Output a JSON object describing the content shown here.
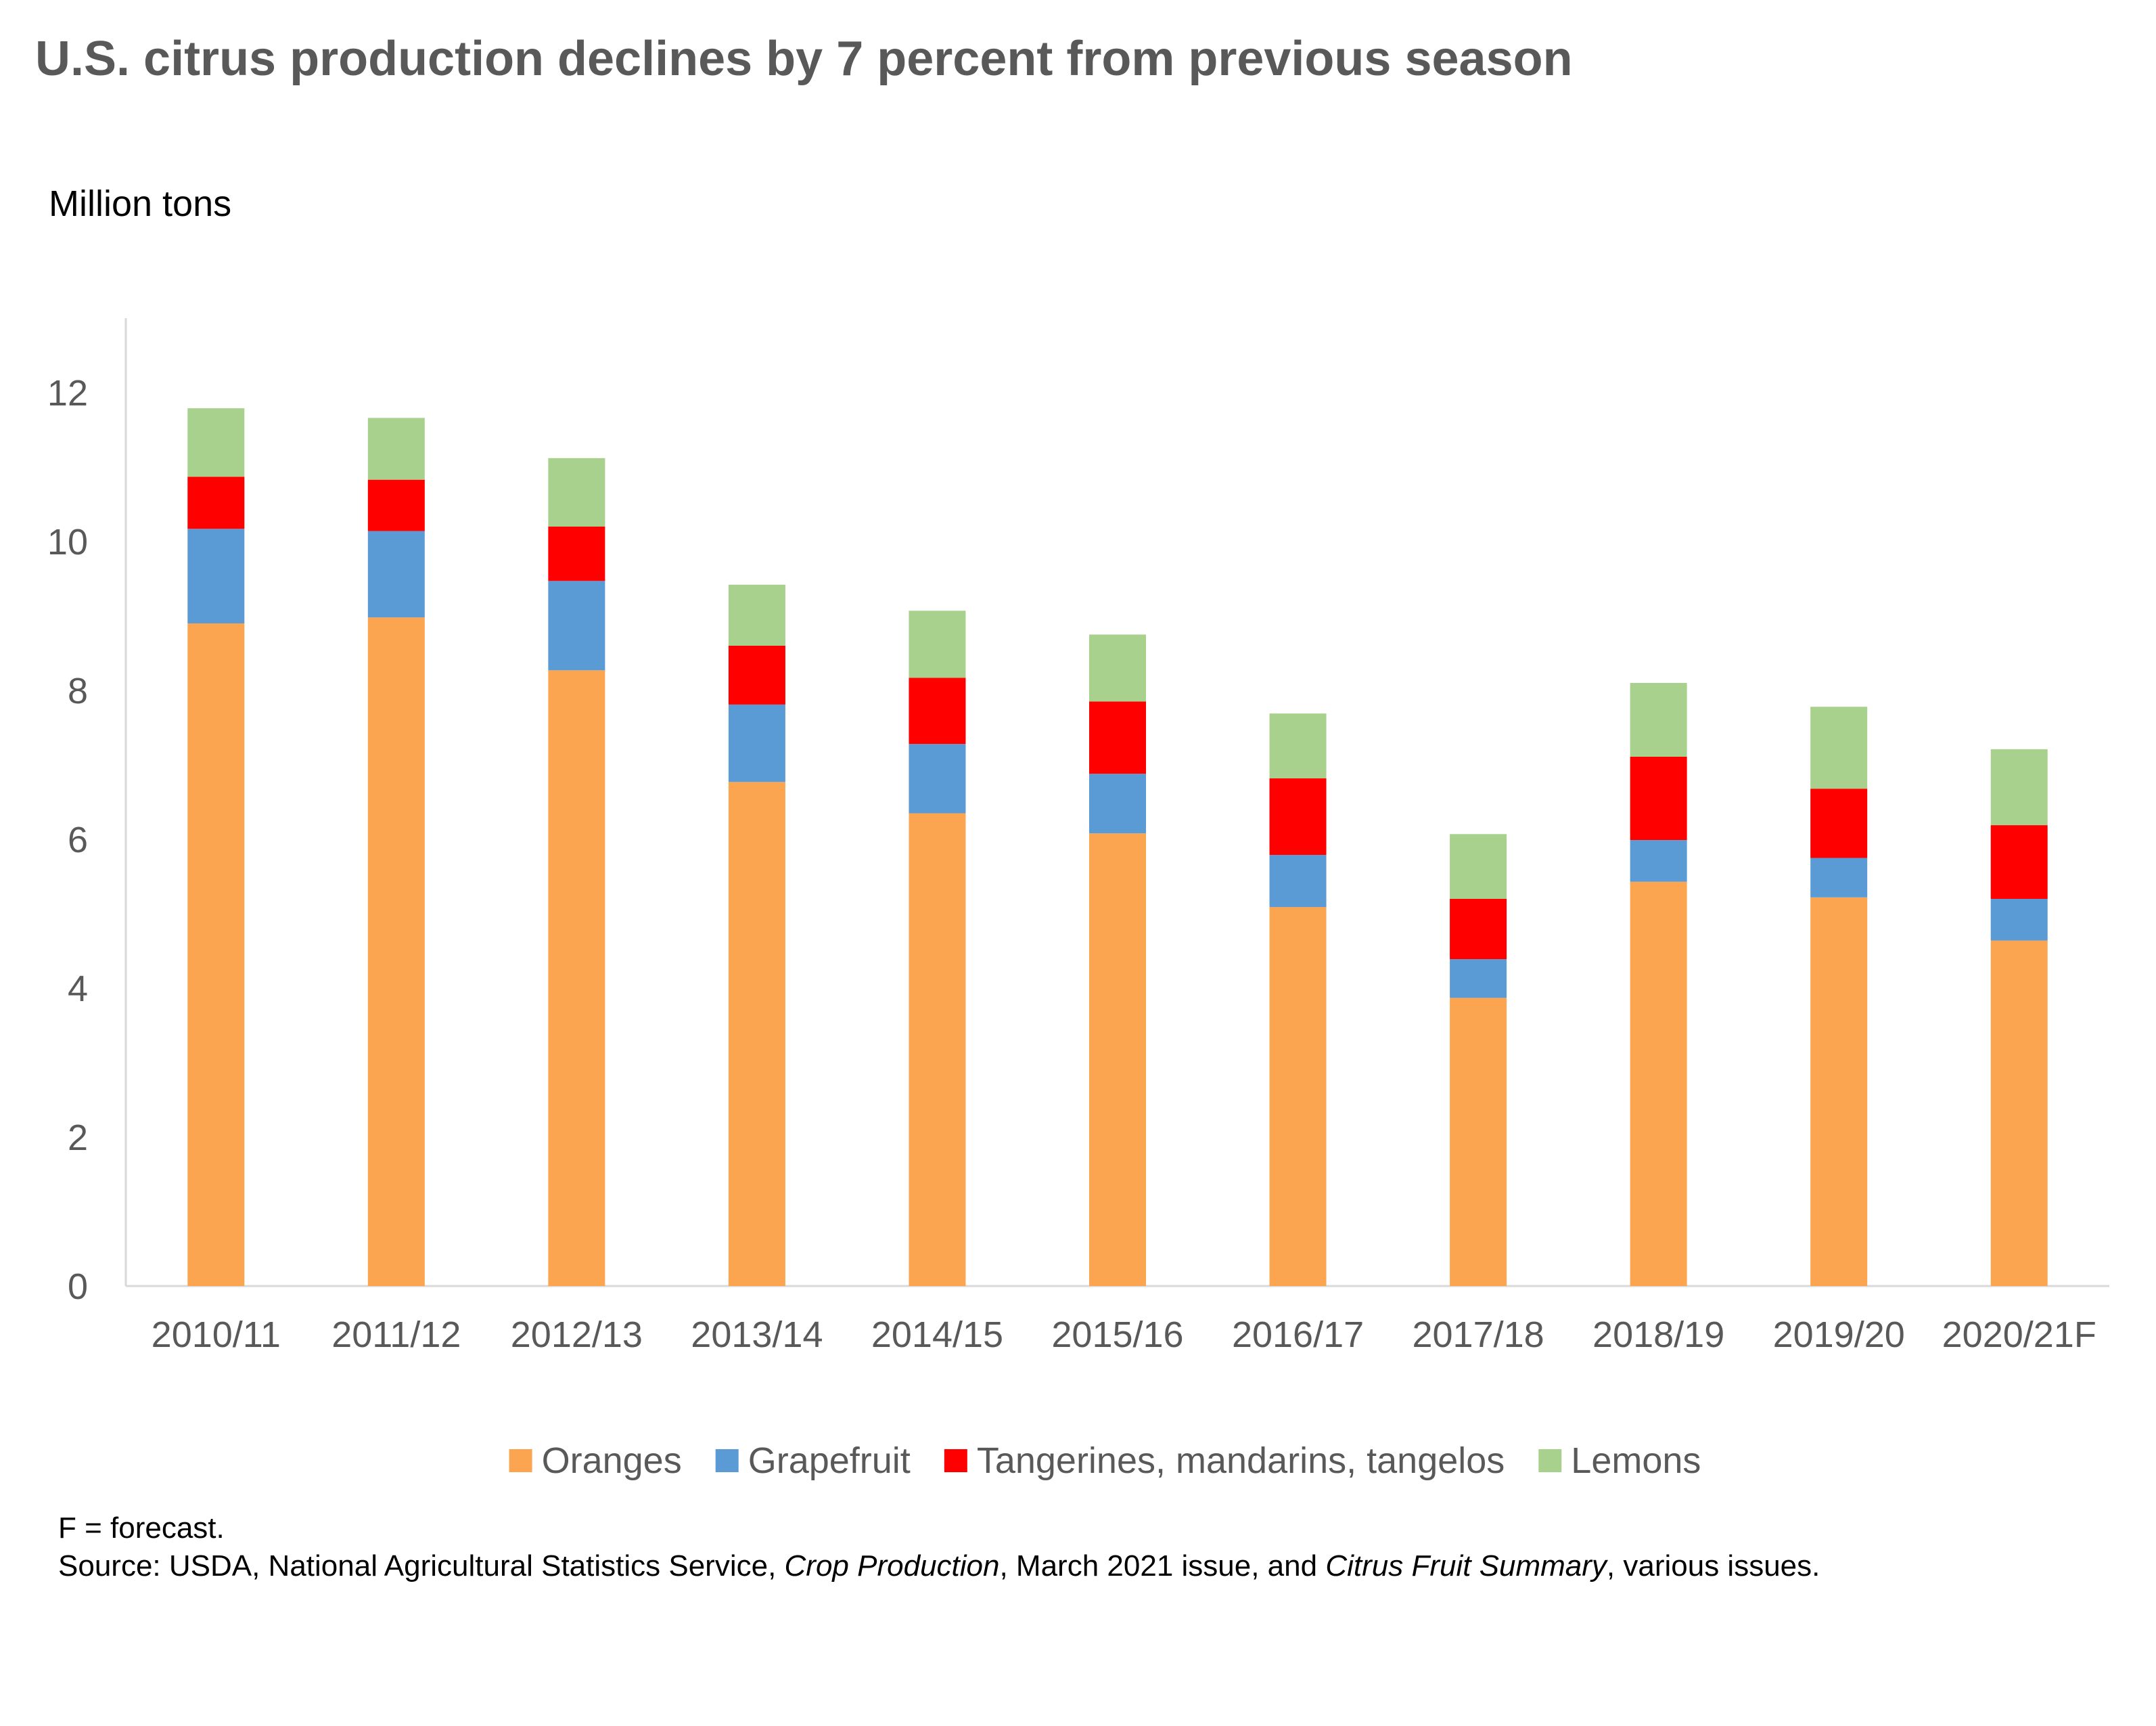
{
  "chart_data": {
    "type": "bar",
    "stacked": true,
    "title": "U.S. citrus production declines by 7 percent from previous season",
    "ylabel": "Million tons",
    "xlabel": "",
    "ylim": [
      0,
      13
    ],
    "yticks": [
      0,
      2,
      4,
      6,
      8,
      10,
      12
    ],
    "grid": false,
    "legend_position": "bottom",
    "categories": [
      "2010/11",
      "2011/12",
      "2012/13",
      "2013/14",
      "2014/15",
      "2015/16",
      "2016/17",
      "2017/18",
      "2018/19",
      "2019/20",
      "2020/21F"
    ],
    "series": [
      {
        "name": "Oranges",
        "color": "#FBA551",
        "values": [
          8.9,
          8.98,
          8.27,
          6.77,
          6.35,
          6.08,
          5.09,
          3.87,
          5.43,
          5.22,
          4.64
        ]
      },
      {
        "name": "Grapefruit",
        "color": "#5B9BD5",
        "values": [
          1.27,
          1.16,
          1.2,
          1.04,
          0.93,
          0.8,
          0.7,
          0.52,
          0.56,
          0.53,
          0.56
        ]
      },
      {
        "name": "Tangerines, mandarins, tangelos",
        "color": "#FF0000",
        "values": [
          0.7,
          0.69,
          0.73,
          0.79,
          0.89,
          0.97,
          1.03,
          0.81,
          1.12,
          0.93,
          0.99
        ]
      },
      {
        "name": "Lemons",
        "color": "#A9D18E",
        "values": [
          0.92,
          0.83,
          0.92,
          0.82,
          0.9,
          0.9,
          0.87,
          0.87,
          0.99,
          1.1,
          1.02
        ]
      }
    ]
  },
  "footnote": {
    "forecast_note": "F = forecast.",
    "source_prefix": "Source: USDA, National Agricultural Statistics Service, ",
    "source_pub1": "Crop Production",
    "source_mid": ", March 2021 issue, and ",
    "source_pub2": "Citrus Fruit Summary",
    "source_suffix": ", various issues."
  }
}
